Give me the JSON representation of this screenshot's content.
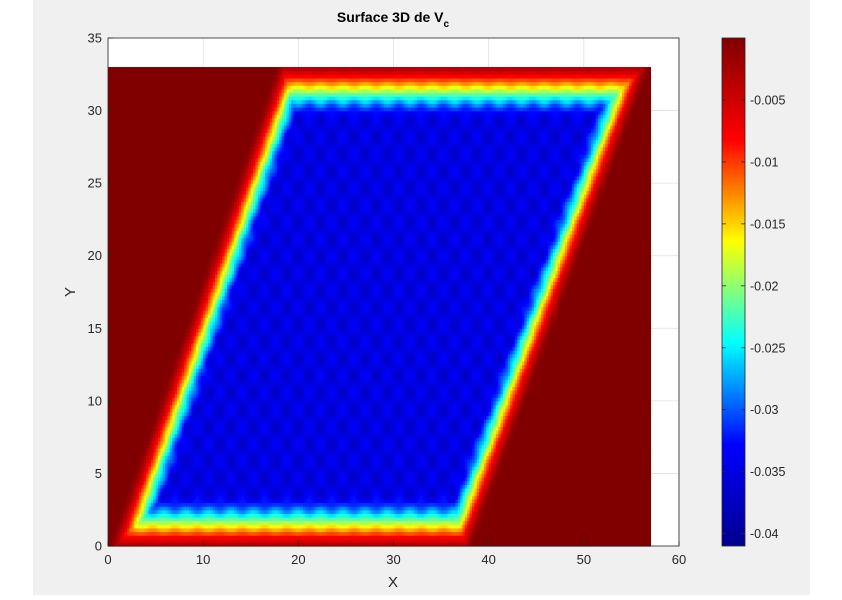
{
  "figure": {
    "background": "#f0f0f0"
  },
  "chart_data": {
    "type": "heatmap",
    "title": {
      "main": "Surface 3D de V",
      "subscript": "c"
    },
    "xlabel": "X",
    "ylabel": "Y",
    "xlim": [
      0,
      60
    ],
    "ylim": [
      0,
      35
    ],
    "x_ticks": [
      {
        "value": 0,
        "label": "0"
      },
      {
        "value": 10,
        "label": "10"
      },
      {
        "value": 20,
        "label": "20"
      },
      {
        "value": 30,
        "label": "30"
      },
      {
        "value": 40,
        "label": "40"
      },
      {
        "value": 50,
        "label": "50"
      },
      {
        "value": 60,
        "label": "60"
      }
    ],
    "y_ticks": [
      {
        "value": 0,
        "label": "0"
      },
      {
        "value": 5,
        "label": "5"
      },
      {
        "value": 10,
        "label": "10"
      },
      {
        "value": 15,
        "label": "15"
      },
      {
        "value": 20,
        "label": "20"
      },
      {
        "value": 25,
        "label": "25"
      },
      {
        "value": 30,
        "label": "30"
      },
      {
        "value": 35,
        "label": "35"
      }
    ],
    "grid": true,
    "colormap": "jet",
    "colorbar": {
      "clim": [
        -0.041,
        0
      ],
      "ticks": [
        {
          "value": -0.005,
          "label": "-0.005"
        },
        {
          "value": -0.01,
          "label": "-0.01"
        },
        {
          "value": -0.015,
          "label": "-0.015"
        },
        {
          "value": -0.02,
          "label": "-0.02"
        },
        {
          "value": -0.025,
          "label": "-0.025"
        },
        {
          "value": -0.03,
          "label": "-0.03"
        },
        {
          "value": -0.035,
          "label": "-0.035"
        },
        {
          "value": -0.04,
          "label": "-0.04"
        }
      ],
      "colors": [
        "#00008f",
        "#0000ff",
        "#00ffff",
        "#ffff00",
        "#ff0000",
        "#800000"
      ]
    },
    "surface": {
      "x_extent": [
        0,
        57
      ],
      "y_extent": [
        0,
        33
      ],
      "well_region": {
        "bottom_edge": {
          "y": 1.5,
          "x_from": 3,
          "x_to": 37
        },
        "top_edge": {
          "y": 31.5,
          "x_from": 19,
          "x_to": 54
        }
      },
      "value_outside": 0,
      "value_inside": -0.037
    }
  }
}
